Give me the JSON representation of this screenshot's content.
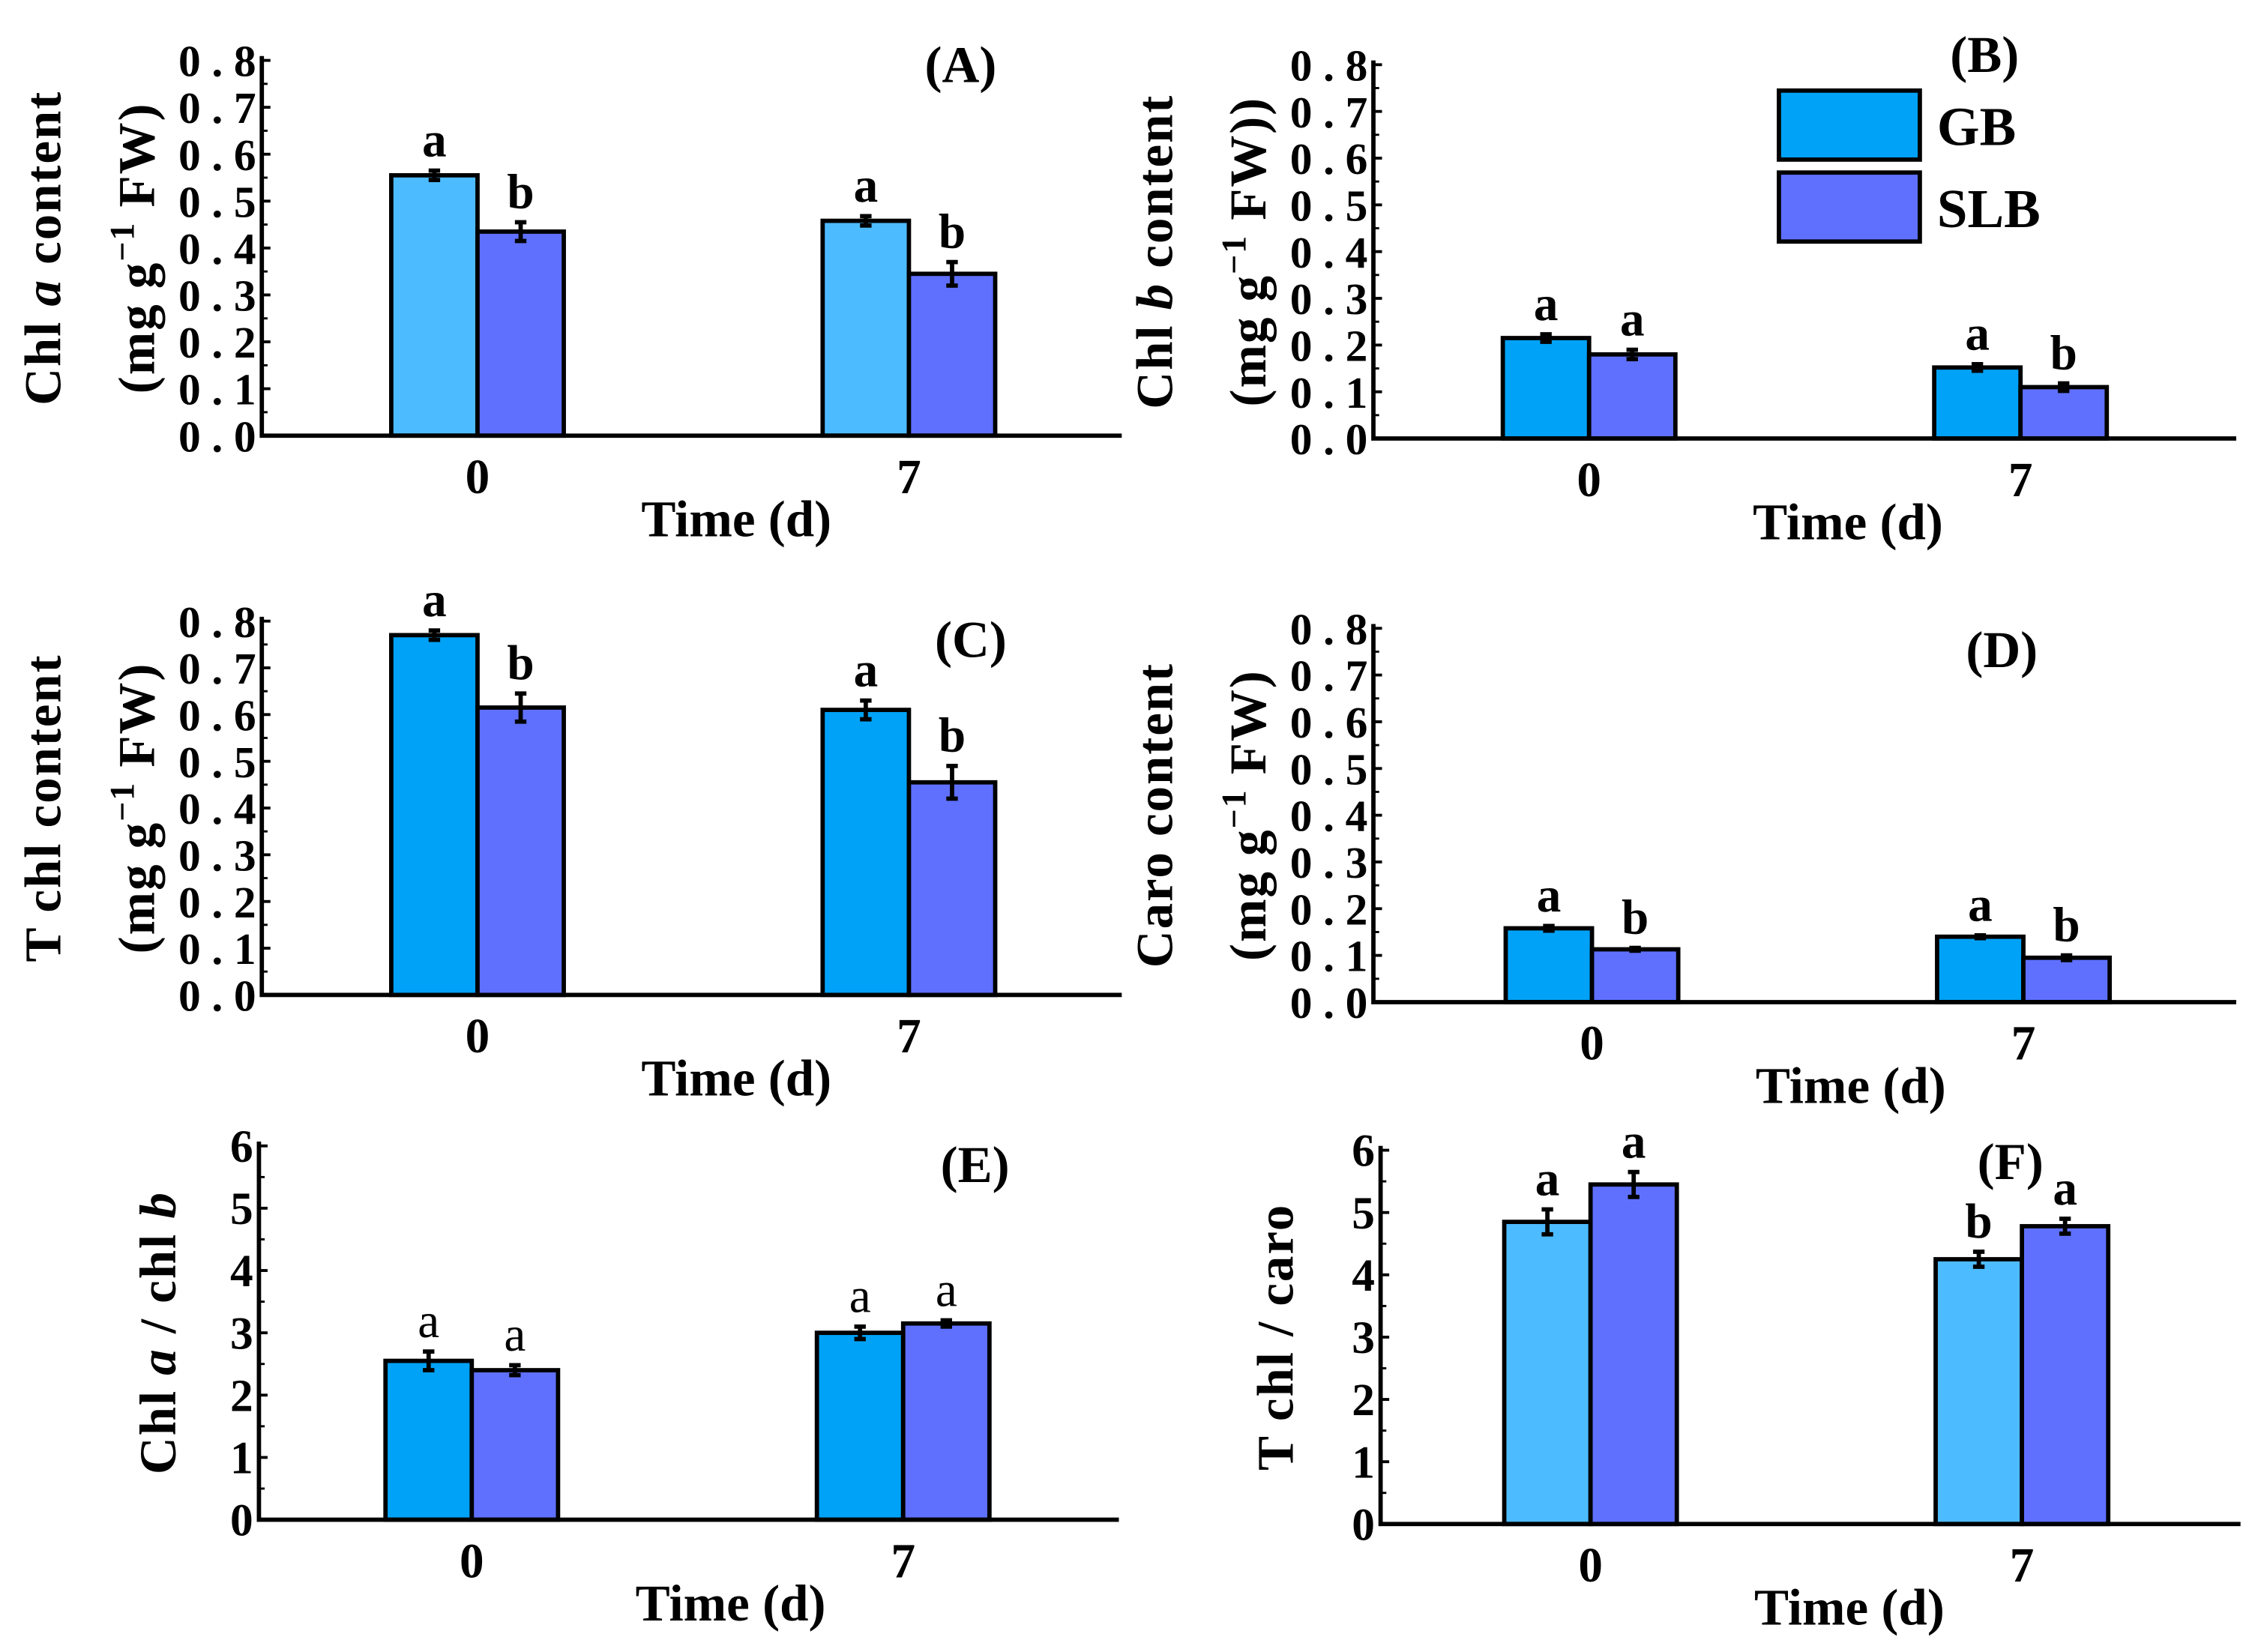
{
  "colors": {
    "gb": "#00a2f7",
    "gb_light": "#4dbbff",
    "slb": "#5f70ff",
    "axis": "#000000"
  },
  "legend": {
    "items": [
      "GB",
      "SLB"
    ]
  },
  "chart_data": [
    {
      "type": "bar",
      "panel_label": "(A)",
      "xlabel": "Time (d)",
      "categories": [
        "0",
        "7"
      ],
      "ylabel_lines": [
        [
          {
            "t": "Chl ",
            "i": false
          },
          {
            "t": "a",
            "i": true
          },
          {
            "t": " content",
            "i": false
          }
        ],
        [
          {
            "t": "(mg g",
            "i": false
          },
          {
            "t": "−1",
            "i": false,
            "sup": true
          },
          {
            "t": " FW)",
            "i": false
          }
        ]
      ],
      "ylim": [
        0,
        0.8
      ],
      "yticks": [
        "0.0",
        "0.1",
        "0.2",
        "0.3",
        "0.4",
        "0.5",
        "0.6",
        "0.7",
        "0.8"
      ],
      "light_gb": true,
      "series": [
        {
          "name": "GB",
          "values": [
            0.555,
            0.458
          ],
          "errors": [
            0.01,
            0.01
          ],
          "letters": [
            "a",
            "a"
          ]
        },
        {
          "name": "SLB",
          "values": [
            0.435,
            0.345
          ],
          "errors": [
            0.02,
            0.025
          ],
          "letters": [
            "b",
            "b"
          ]
        }
      ]
    },
    {
      "type": "bar",
      "panel_label": "(B)",
      "xlabel": "Time (d)",
      "categories": [
        "0",
        "7"
      ],
      "ylabel_lines": [
        [
          {
            "t": "Chl ",
            "i": false
          },
          {
            "t": "b",
            "i": true
          },
          {
            "t": " content",
            "i": false
          }
        ],
        [
          {
            "t": "(mg g",
            "i": false
          },
          {
            "t": "−1",
            "i": false,
            "sup": true
          },
          {
            "t": " FW))",
            "i": false
          }
        ]
      ],
      "ylim": [
        0,
        0.8
      ],
      "yticks": [
        "0.0",
        "0.1",
        "0.2",
        "0.3",
        "0.4",
        "0.5",
        "0.6",
        "0.7",
        "0.8"
      ],
      "light_gb": false,
      "legend": "top-right",
      "series": [
        {
          "name": "GB",
          "values": [
            0.215,
            0.152
          ],
          "errors": [
            0.008,
            0.007
          ],
          "letters": [
            "a",
            "a"
          ]
        },
        {
          "name": "SLB",
          "values": [
            0.18,
            0.11
          ],
          "errors": [
            0.01,
            0.008
          ],
          "letters": [
            "a",
            "b"
          ]
        }
      ]
    },
    {
      "type": "bar",
      "panel_label": "(C)",
      "xlabel": "Time (d)",
      "categories": [
        "0",
        "7"
      ],
      "ylabel_lines": [
        [
          {
            "t": "T chl content",
            "i": false
          }
        ],
        [
          {
            "t": "(mg g",
            "i": false
          },
          {
            "t": "−1",
            "i": false,
            "sup": true
          },
          {
            "t": " FW)",
            "i": false
          }
        ]
      ],
      "ylim": [
        0,
        0.8
      ],
      "yticks": [
        "0.0",
        "0.1",
        "0.2",
        "0.3",
        "0.4",
        "0.5",
        "0.6",
        "0.7",
        "0.8"
      ],
      "light_gb": false,
      "series": [
        {
          "name": "GB",
          "values": [
            0.77,
            0.61
          ],
          "errors": [
            0.01,
            0.02
          ],
          "letters": [
            "a",
            "a"
          ]
        },
        {
          "name": "SLB",
          "values": [
            0.615,
            0.455
          ],
          "errors": [
            0.03,
            0.035
          ],
          "letters": [
            "b",
            "b"
          ]
        }
      ]
    },
    {
      "type": "bar",
      "panel_label": "(D)",
      "xlabel": "Time (d)",
      "categories": [
        "0",
        "7"
      ],
      "ylabel_lines": [
        [
          {
            "t": "Caro content",
            "i": false
          }
        ],
        [
          {
            "t": "(mg g",
            "i": false
          },
          {
            "t": "−1",
            "i": false,
            "sup": true
          },
          {
            "t": " FW)",
            "i": false
          }
        ]
      ],
      "ylim": [
        0,
        0.8
      ],
      "yticks": [
        "0.0",
        "0.1",
        "0.2",
        "0.3",
        "0.4",
        "0.5",
        "0.6",
        "0.7",
        "0.8"
      ],
      "light_gb": false,
      "series": [
        {
          "name": "GB",
          "values": [
            0.158,
            0.14
          ],
          "errors": [
            0.005,
            0.003
          ],
          "letters": [
            "a",
            "a"
          ]
        },
        {
          "name": "SLB",
          "values": [
            0.113,
            0.095
          ],
          "errors": [
            0.003,
            0.005
          ],
          "letters": [
            "b",
            "b"
          ]
        }
      ]
    },
    {
      "type": "bar",
      "panel_label": "(E)",
      "xlabel": "Time (d)",
      "categories": [
        "0",
        "7"
      ],
      "ylabel_lines": [
        [
          {
            "t": "Chl ",
            "i": false
          },
          {
            "t": "a",
            "i": true
          },
          {
            "t": " / chl ",
            "i": false
          },
          {
            "t": "b",
            "i": true
          }
        ]
      ],
      "ylim": [
        0,
        6
      ],
      "yticks": [
        "0",
        "1",
        "2",
        "3",
        "4",
        "5",
        "6"
      ],
      "light_gb": false,
      "light_letters": true,
      "series": [
        {
          "name": "GB",
          "values": [
            2.55,
            3.0
          ],
          "errors": [
            0.15,
            0.1
          ],
          "letters": [
            "a",
            "a"
          ]
        },
        {
          "name": "SLB",
          "values": [
            2.4,
            3.15
          ],
          "errors": [
            0.08,
            0.05
          ],
          "letters": [
            "a",
            "a"
          ]
        }
      ]
    },
    {
      "type": "bar",
      "panel_label": "(F)",
      "xlabel": "Time (d)",
      "categories": [
        "0",
        "7"
      ],
      "ylabel_lines": [
        [
          {
            "t": "T chl / caro",
            "i": false
          }
        ]
      ],
      "ylim": [
        0,
        6
      ],
      "yticks": [
        "0",
        "1",
        "2",
        "3",
        "4",
        "5",
        "6"
      ],
      "light_gb": true,
      "series": [
        {
          "name": "GB",
          "values": [
            4.85,
            4.25
          ],
          "errors": [
            0.2,
            0.12
          ],
          "letters": [
            "a",
            "b"
          ]
        },
        {
          "name": "SLB",
          "values": [
            5.45,
            4.78
          ],
          "errors": [
            0.2,
            0.12
          ],
          "letters": [
            "a",
            "a"
          ]
        }
      ]
    }
  ]
}
